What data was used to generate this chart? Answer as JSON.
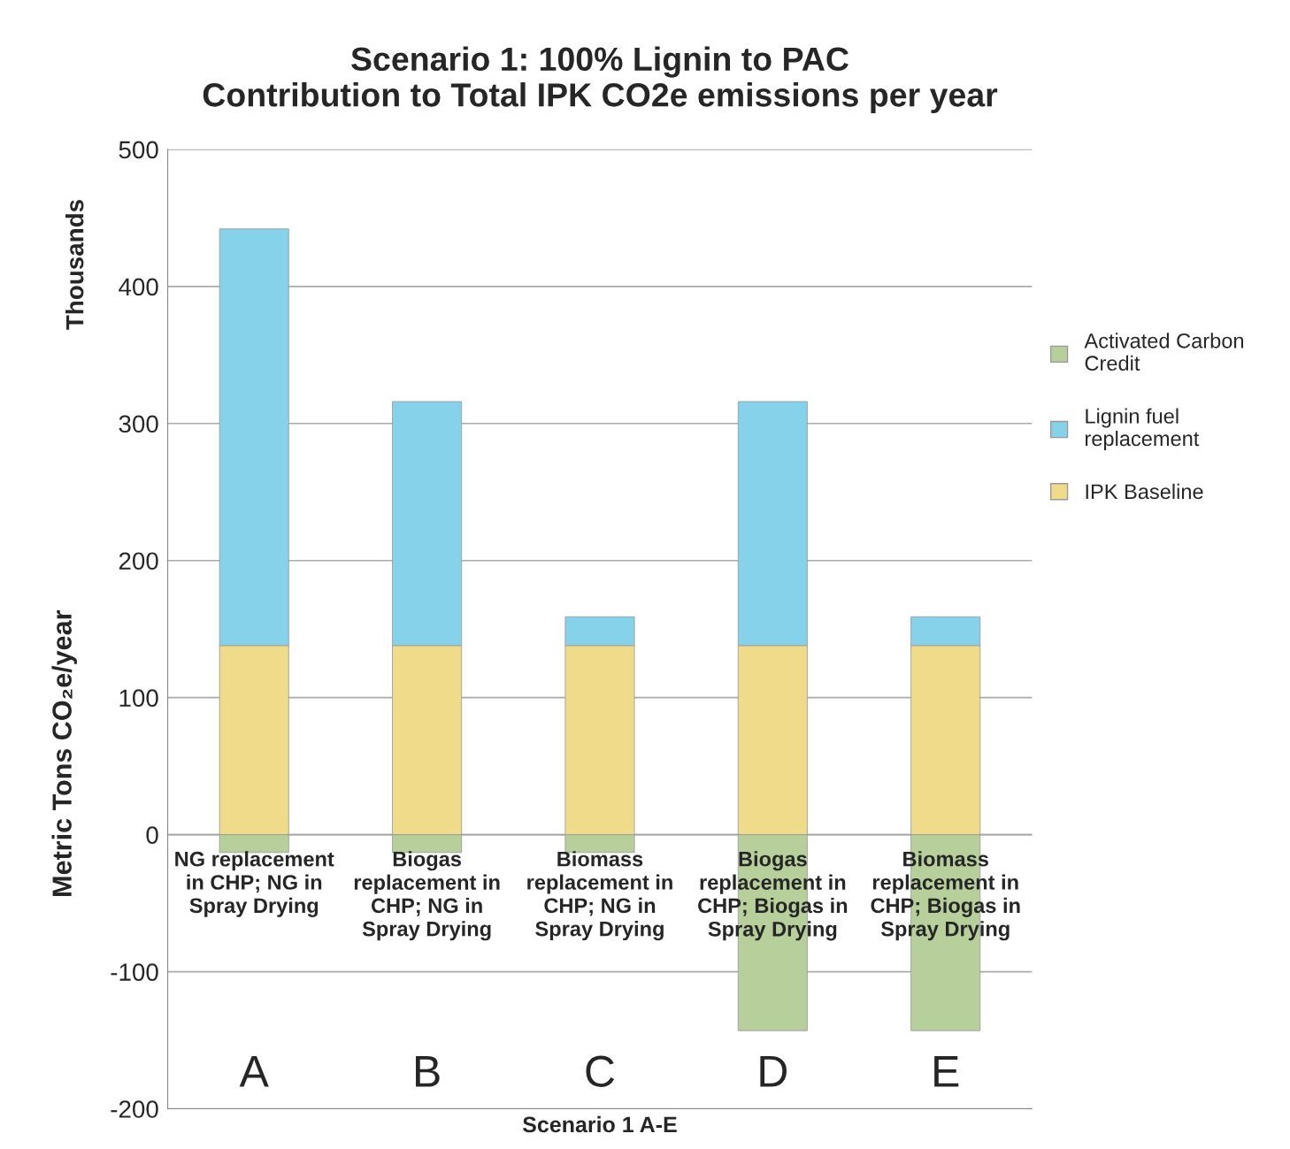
{
  "chart_data": {
    "type": "bar",
    "stacked": true,
    "title": "Scenario 1: 100% Lignin to PAC\nContribution to Total IPK CO2e emissions per year",
    "xlabel": "Scenario 1 A-E",
    "ylabel": "Metric Tons CO₂e/year",
    "categories": [
      "NG replacement\nin CHP; NG in\nSpray Drying",
      "Biogas\nreplacement in\nCHP; NG in\nSpray Drying",
      "Biomass\nreplacement in\nCHP; NG in\nSpray Drying",
      "Biogas\nreplacement in\nCHP; Biogas in\nSpray Drying",
      "Biomass\nreplacement in\nCHP; Biogas in\nSpray Drying"
    ],
    "series": [
      {
        "name": "IPK Baseline",
        "color": "#f0db8a",
        "values": [
          138,
          138,
          138,
          138,
          138
        ]
      },
      {
        "name": "Lignin fuel\nreplacement",
        "color": "#86d2ea",
        "values": [
          304,
          178,
          21,
          178,
          21
        ]
      },
      {
        "name": "Activated Carbon\nCredit",
        "color": "#b7cf9b",
        "values": [
          -13,
          -13,
          -13,
          -143,
          -143
        ]
      }
    ],
    "ylim": [
      -200,
      500
    ],
    "yticks": [
      -200,
      -100,
      0,
      100,
      200,
      300,
      400,
      500
    ],
    "grid": "y",
    "legend": "right",
    "annotations": [
      "Thousands",
      "A",
      "B",
      "C",
      "D",
      "E"
    ]
  }
}
